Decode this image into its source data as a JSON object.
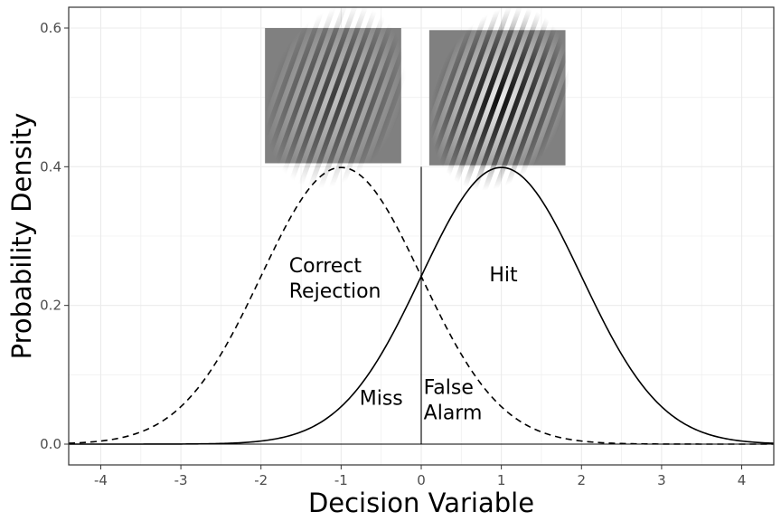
{
  "chart_data": {
    "type": "line",
    "title": "",
    "xlabel": "Decision Variable",
    "ylabel": "Probability Density",
    "xlim": [
      -4.4,
      4.4
    ],
    "ylim": [
      -0.03,
      0.63
    ],
    "x_ticks": [
      -4,
      -3,
      -2,
      -1,
      0,
      1,
      2,
      3,
      4
    ],
    "y_ticks": [
      "0.0",
      "0.2",
      "0.4",
      "0.6"
    ],
    "grid": true,
    "series": [
      {
        "kind": "normal-pdf",
        "mean": -1,
        "sd": 1,
        "line_style": "dashed",
        "color": "#000000"
      },
      {
        "kind": "normal-pdf",
        "mean": 1,
        "sd": 1,
        "line_style": "solid",
        "color": "#000000"
      }
    ],
    "criterion": {
      "x": 0,
      "y_from": 0,
      "y_to": 0.4
    },
    "baseline": {
      "y": 0
    },
    "annotations": [
      {
        "lines": [
          "Correct",
          "Rejection"
        ],
        "x": -1.65,
        "y": 0.245
      },
      {
        "lines": [
          "Hit"
        ],
        "x": 0.85,
        "y": 0.235
      },
      {
        "lines": [
          "Miss"
        ],
        "x": -0.77,
        "y": 0.057
      },
      {
        "lines": [
          "False",
          "Alarm"
        ],
        "x": 0.03,
        "y": 0.07
      }
    ],
    "images": [
      {
        "name": "noise-gabor",
        "x": [
          -1.95,
          -0.25
        ],
        "y": [
          0.405,
          0.6
        ],
        "orientation_deg": 20,
        "contrast": 0.6
      },
      {
        "name": "signal-gabor",
        "x": [
          0.1,
          1.8
        ],
        "y": [
          0.402,
          0.597
        ],
        "orientation_deg": 20,
        "contrast": 1.0
      }
    ]
  }
}
